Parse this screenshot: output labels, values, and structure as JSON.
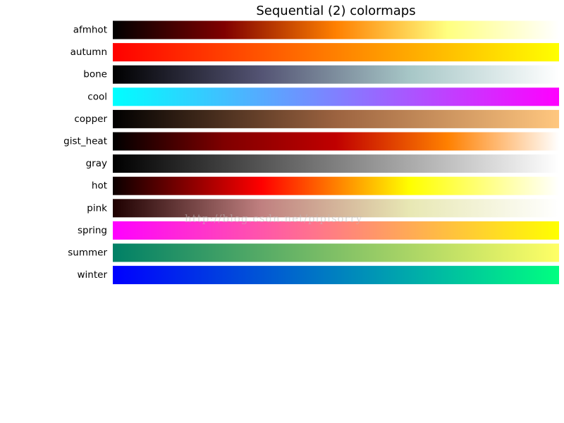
{
  "title": "Sequential (2) colormaps",
  "watermark": "http://blog.csdn.net/pipisorry",
  "chart_data": {
    "type": "heatmap",
    "title": "Sequential (2) colormaps",
    "colormaps": [
      {
        "name": "afmhot",
        "stops": [
          "#000000",
          "#800000",
          "#ff8000",
          "#ffff80",
          "#ffffff"
        ]
      },
      {
        "name": "autumn",
        "stops": [
          "#ff0000",
          "#ff8000",
          "#ffff00"
        ]
      },
      {
        "name": "bone",
        "stops": [
          "#000000",
          "#545474",
          "#a7c7c7",
          "#ffffff"
        ]
      },
      {
        "name": "cool",
        "stops": [
          "#00ffff",
          "#8080ff",
          "#ff00ff"
        ]
      },
      {
        "name": "copper",
        "stops": [
          "#000000",
          "#9c6340",
          "#ffc77f"
        ]
      },
      {
        "name": "gist_heat",
        "stops": [
          "#000000",
          "#800000",
          "#c00000",
          "#ff8000",
          "#ffffff"
        ]
      },
      {
        "name": "gray",
        "stops": [
          "#000000",
          "#ffffff"
        ]
      },
      {
        "name": "hot",
        "stops": [
          "#0b0000",
          "#ff0000",
          "#ffff00",
          "#ffffff"
        ]
      },
      {
        "name": "pink",
        "stops": [
          "#1e0000",
          "#c08080",
          "#e8e8b4",
          "#ffffff"
        ]
      },
      {
        "name": "spring",
        "stops": [
          "#ff00ff",
          "#ff8080",
          "#ffff00"
        ]
      },
      {
        "name": "summer",
        "stops": [
          "#008066",
          "#80c066",
          "#ffff66"
        ]
      },
      {
        "name": "winter",
        "stops": [
          "#0000ff",
          "#0080c0",
          "#00ff80"
        ]
      }
    ]
  }
}
